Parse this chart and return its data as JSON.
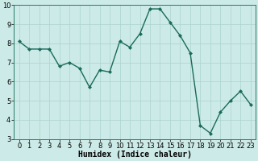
{
  "x": [
    0,
    1,
    2,
    3,
    4,
    5,
    6,
    7,
    8,
    9,
    10,
    11,
    12,
    13,
    14,
    15,
    16,
    17,
    18,
    19,
    20,
    21,
    22,
    23
  ],
  "y": [
    8.1,
    7.7,
    7.7,
    7.7,
    6.8,
    7.0,
    6.7,
    5.7,
    6.6,
    6.5,
    8.1,
    7.8,
    8.5,
    9.8,
    9.8,
    9.1,
    8.4,
    7.5,
    3.7,
    3.3,
    4.4,
    5.0,
    5.5,
    4.8
  ],
  "line_color": "#1a6b5a",
  "marker": "D",
  "marker_size": 2,
  "bg_color": "#cceae7",
  "grid_color": "#aad4d0",
  "xlabel": "Humidex (Indice chaleur)",
  "xlabel_fontsize": 7,
  "ylim": [
    3,
    10
  ],
  "xlim": [
    -0.5,
    23.5
  ],
  "yticks": [
    3,
    4,
    5,
    6,
    7,
    8,
    9,
    10
  ],
  "xticks": [
    0,
    1,
    2,
    3,
    4,
    5,
    6,
    7,
    8,
    9,
    10,
    11,
    12,
    13,
    14,
    15,
    16,
    17,
    18,
    19,
    20,
    21,
    22,
    23
  ],
  "tick_fontsize": 6,
  "linewidth": 1.0,
  "spine_color": "#2a7a68"
}
